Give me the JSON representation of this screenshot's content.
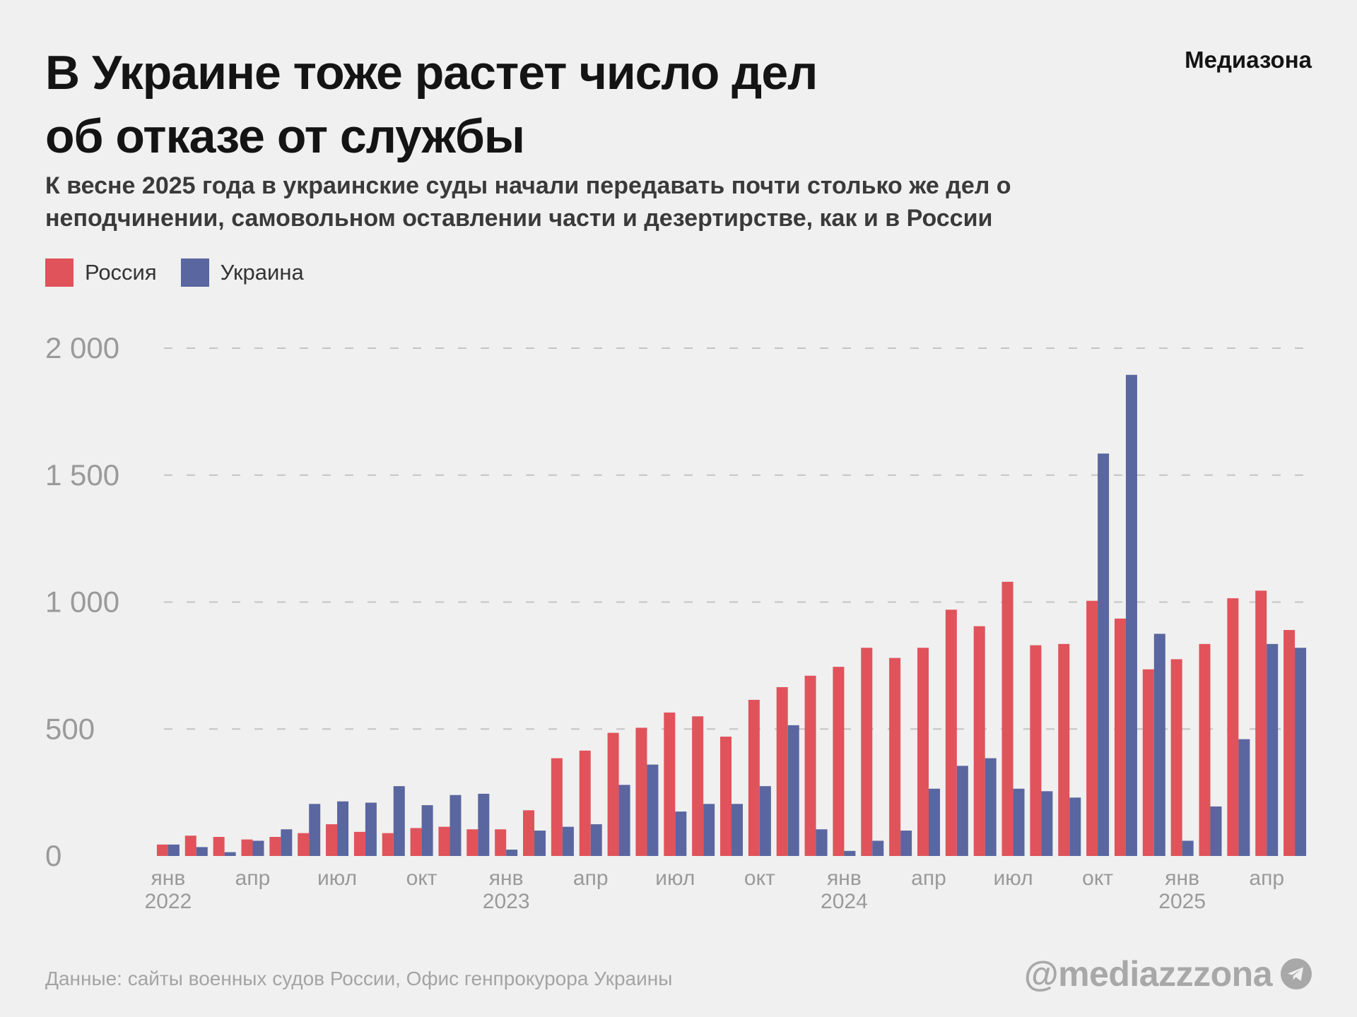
{
  "header": {
    "title_line1": "В Украине тоже растет число дел",
    "title_line2": "об отказе от службы",
    "brand": "Медиазона",
    "subtitle_line1": "К весне 2025 года в украинские суды начали передавать почти столько же дел о",
    "subtitle_line2": "неподчинении, самовольном оставлении части и дезертирстве, как и в России"
  },
  "footer": {
    "source": "Данные: сайты военных судов России, Офис генпрокурора Украины",
    "handle": "@mediazzzona",
    "handle_icon": "telegram-icon"
  },
  "colors": {
    "russia": "#e0535a",
    "ukraine": "#5a669f",
    "grid": "#c4c4c4",
    "tick_text": "#9a9a9a"
  },
  "chart_data": {
    "type": "bar",
    "title": "В Украине тоже растет число дел об отказе от службы",
    "ylim": [
      0,
      2000
    ],
    "yticks": [
      0,
      500,
      1000,
      1500,
      2000
    ],
    "ytick_labels": [
      "0",
      "500",
      "1 000",
      "1 500",
      "2 000"
    ],
    "grid": "horizontal dashed",
    "legend_position": "top-left",
    "categories": [
      "2022-01",
      "2022-02",
      "2022-03",
      "2022-04",
      "2022-05",
      "2022-06",
      "2022-07",
      "2022-08",
      "2022-09",
      "2022-10",
      "2022-11",
      "2022-12",
      "2023-01",
      "2023-02",
      "2023-03",
      "2023-04",
      "2023-05",
      "2023-06",
      "2023-07",
      "2023-08",
      "2023-09",
      "2023-10",
      "2023-11",
      "2023-12",
      "2024-01",
      "2024-02",
      "2024-03",
      "2024-04",
      "2024-05",
      "2024-06",
      "2024-07",
      "2024-08",
      "2024-09",
      "2024-10",
      "2024-11",
      "2024-12",
      "2025-01",
      "2025-02",
      "2025-03",
      "2025-04",
      "2025-05"
    ],
    "xtick_labels": [
      {
        "index": 0,
        "month": "янв",
        "year": "2022"
      },
      {
        "index": 3,
        "month": "апр",
        "year": ""
      },
      {
        "index": 6,
        "month": "июл",
        "year": ""
      },
      {
        "index": 9,
        "month": "окт",
        "year": ""
      },
      {
        "index": 12,
        "month": "янв",
        "year": "2023"
      },
      {
        "index": 15,
        "month": "апр",
        "year": ""
      },
      {
        "index": 18,
        "month": "июл",
        "year": ""
      },
      {
        "index": 21,
        "month": "окт",
        "year": ""
      },
      {
        "index": 24,
        "month": "янв",
        "year": "2024"
      },
      {
        "index": 27,
        "month": "апр",
        "year": ""
      },
      {
        "index": 30,
        "month": "июл",
        "year": ""
      },
      {
        "index": 33,
        "month": "окт",
        "year": ""
      },
      {
        "index": 36,
        "month": "янв",
        "year": "2025"
      },
      {
        "index": 39,
        "month": "апр",
        "year": ""
      }
    ],
    "series": [
      {
        "name": "Россия",
        "values": [
          45,
          80,
          75,
          65,
          75,
          90,
          125,
          95,
          90,
          110,
          115,
          105,
          105,
          180,
          385,
          415,
          485,
          505,
          565,
          550,
          470,
          615,
          665,
          710,
          745,
          820,
          780,
          820,
          970,
          905,
          1080,
          830,
          835,
          1005,
          935,
          735,
          775,
          835,
          1015,
          1045,
          890
        ]
      },
      {
        "name": "Украина",
        "values": [
          45,
          35,
          15,
          60,
          105,
          205,
          215,
          210,
          275,
          200,
          240,
          245,
          25,
          100,
          115,
          125,
          280,
          360,
          175,
          205,
          205,
          275,
          515,
          105,
          20,
          60,
          100,
          265,
          355,
          385,
          265,
          255,
          230,
          1585,
          1895,
          875,
          60,
          195,
          460,
          835,
          820
        ]
      }
    ]
  }
}
